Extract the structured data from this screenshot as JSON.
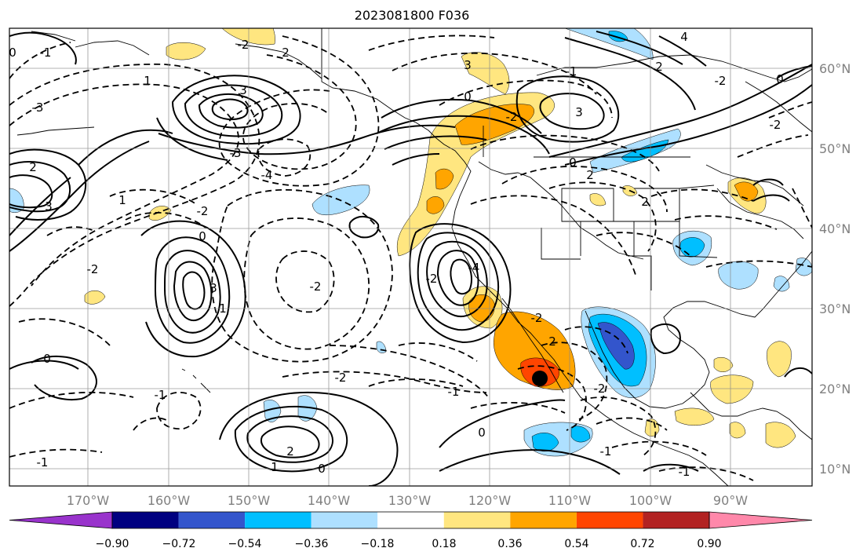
{
  "title": "2023081800 F036",
  "longitude_labels": [
    "170°W",
    "160°W",
    "150°W",
    "140°W",
    "130°W",
    "120°W",
    "110°W",
    "100°W",
    "90°W"
  ],
  "latitude_labels": [
    "60°N",
    "50°N",
    "40°N",
    "30°N",
    "20°N",
    "10°N"
  ],
  "colorbar": {
    "ticks": [
      "−0.90",
      "−0.72",
      "−0.54",
      "−0.36",
      "−0.18",
      "0.18",
      "0.36",
      "0.54",
      "0.72",
      "0.90"
    ],
    "colors": [
      "#9933cc",
      "#000080",
      "#3355cc",
      "#00bfff",
      "#aee0ff",
      "#ffffff",
      "#ffe680",
      "#ffa500",
      "#ff4500",
      "#b22222",
      "#ff88aa"
    ]
  },
  "contour_labels": [
    {
      "text": "-2"
    },
    {
      "text": "2"
    },
    {
      "text": "3"
    },
    {
      "text": "-1"
    },
    {
      "text": "3"
    },
    {
      "text": "-2"
    },
    {
      "text": "0"
    },
    {
      "text": "-1"
    },
    {
      "text": "1"
    },
    {
      "text": "-3"
    },
    {
      "text": "-4"
    },
    {
      "text": "2"
    },
    {
      "text": "3"
    },
    {
      "text": "0"
    },
    {
      "text": "-2"
    },
    {
      "text": "0"
    },
    {
      "text": "4"
    },
    {
      "text": "3"
    },
    {
      "text": "2"
    },
    {
      "text": "-3"
    },
    {
      "text": "-2"
    },
    {
      "text": "2"
    },
    {
      "text": "-2"
    },
    {
      "text": "0"
    },
    {
      "text": "2"
    },
    {
      "text": "3"
    },
    {
      "text": "1"
    },
    {
      "text": "-2"
    },
    {
      "text": "-2"
    },
    {
      "text": "-2"
    },
    {
      "text": "0"
    },
    {
      "text": "1"
    },
    {
      "text": "-1"
    },
    {
      "text": "-1"
    },
    {
      "text": "0"
    },
    {
      "text": "2"
    },
    {
      "text": "1"
    },
    {
      "text": "0"
    },
    {
      "text": "0"
    },
    {
      "text": "-1"
    },
    {
      "text": "-2"
    },
    {
      "text": "-1"
    },
    {
      "text": "-2"
    },
    {
      "text": "-4"
    },
    {
      "text": "-2"
    },
    {
      "text": "2"
    },
    {
      "text": "-1"
    }
  ],
  "marker": {
    "label": "storm-center"
  }
}
